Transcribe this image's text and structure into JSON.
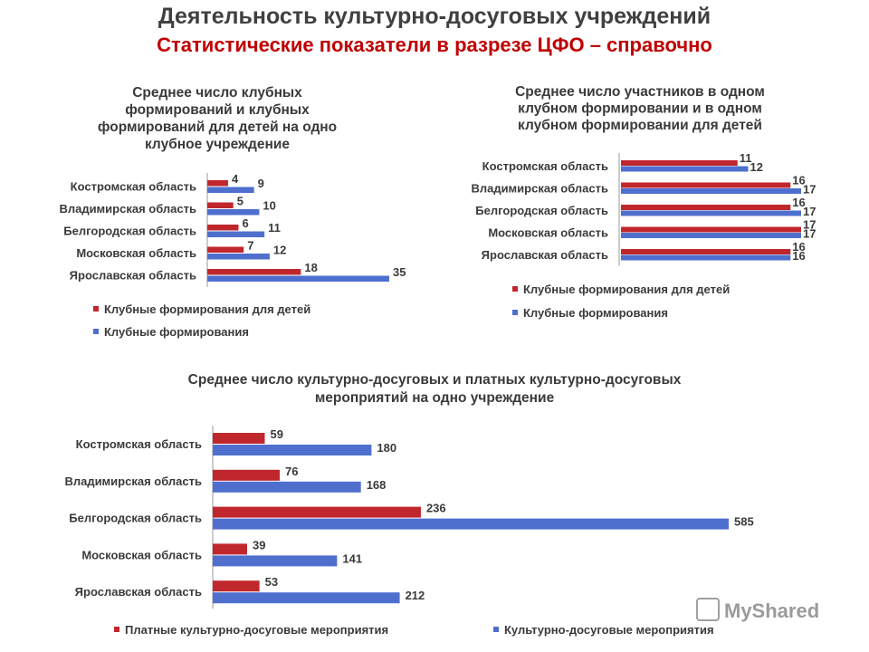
{
  "header": {
    "title": "Деятельность культурно-досуговых учреждений",
    "subtitle": "Статистические показатели в разрезе ЦФО – справочно"
  },
  "colors": {
    "series_children": "#c0272d",
    "series_all": "#4f6fcf"
  },
  "watermark": "MyShared",
  "chart_data": [
    {
      "type": "bar",
      "orientation": "horizontal",
      "title_lines": [
        "Среднее число клубных",
        "формирований и клубных",
        "формирований для детей на одно",
        "клубное учреждение"
      ],
      "categories": [
        "Костромская область",
        "Владимирская область",
        "Белгородская область",
        "Московская область",
        "Ярославская область"
      ],
      "series": [
        {
          "name": "Клубные формирования для детей",
          "values": [
            4,
            5,
            6,
            7,
            18
          ]
        },
        {
          "name": "Клубные формирования",
          "values": [
            9,
            10,
            11,
            12,
            35
          ]
        }
      ],
      "xlim": [
        0,
        35
      ],
      "legend_position": "bottom-left"
    },
    {
      "type": "bar",
      "orientation": "horizontal",
      "title_lines": [
        "Среднее число участников в одном",
        "клубном формировании и в одном",
        "клубном формировании для детей"
      ],
      "categories": [
        "Костромская область",
        "Владимирская область",
        "Белгородская область",
        "Московская область",
        "Ярославская область"
      ],
      "series": [
        {
          "name": "Клубные формирования для детей",
          "values": [
            11,
            16,
            16,
            17,
            16
          ]
        },
        {
          "name": "Клубные формирования",
          "values": [
            12,
            17,
            17,
            17,
            16
          ]
        }
      ],
      "xlim": [
        0,
        17
      ],
      "legend_position": "bottom-left"
    },
    {
      "type": "bar",
      "orientation": "horizontal",
      "title_lines": [
        "Среднее число культурно-досуговых и платных культурно-досуговых",
        "мероприятий на одно учреждение"
      ],
      "categories": [
        "Костромская область",
        "Владимирская область",
        "Белгородская область",
        "Московская область",
        "Ярославская область"
      ],
      "series": [
        {
          "name": "Платные культурно-досуговые мероприятия",
          "values": [
            59,
            76,
            236,
            39,
            53
          ]
        },
        {
          "name": "Культурно-досуговые мероприятия",
          "values": [
            180,
            168,
            585,
            141,
            212
          ]
        }
      ],
      "xlim": [
        0,
        585
      ],
      "legend_position": "bottom"
    }
  ]
}
